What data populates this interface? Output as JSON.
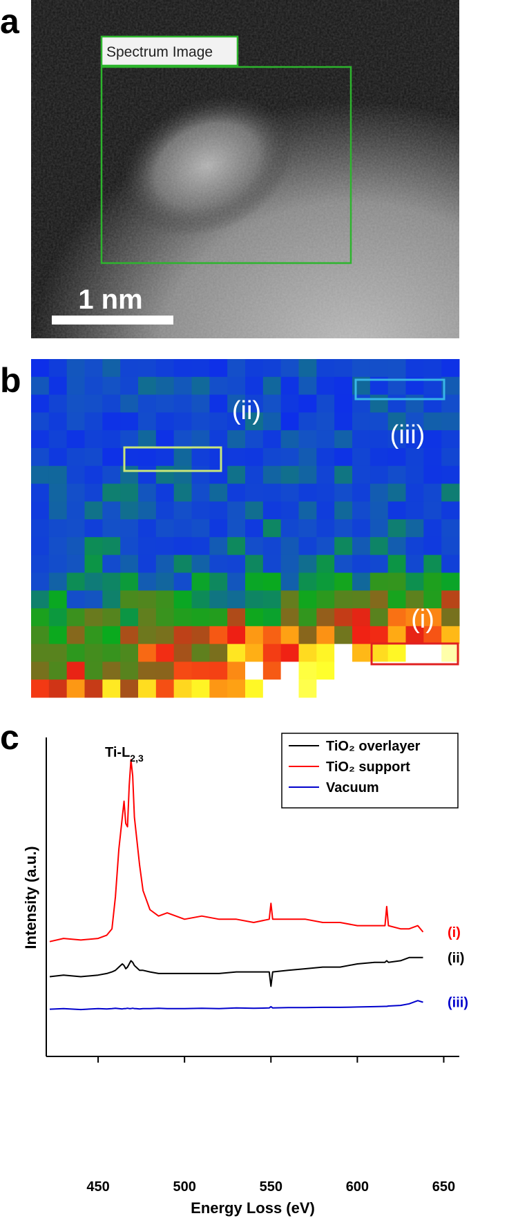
{
  "panel_a": {
    "letter": "a",
    "box_label": "Spectrum Image",
    "scale_bar": "1 nm"
  },
  "panel_b": {
    "letter": "b",
    "region_labels": [
      "(ii)",
      "(iii)",
      "(i)"
    ]
  },
  "chart_data": {
    "type": "line",
    "panel_letter": "c",
    "annotation": {
      "main": "Ti-L",
      "sub": "2,3"
    },
    "x_label": "Energy Loss (eV)",
    "y_label": "Intensity (a.u.)",
    "xlim": [
      420,
      659
    ],
    "ylim": [
      0,
      100
    ],
    "xticks": [
      450,
      500,
      550,
      600,
      650
    ],
    "x": [
      422,
      430,
      440,
      450,
      455,
      458,
      460,
      462,
      464,
      465,
      466,
      467,
      468,
      469,
      470,
      471,
      472,
      474,
      476,
      480,
      485,
      490,
      500,
      510,
      520,
      530,
      540,
      549,
      550,
      551,
      560,
      570,
      580,
      590,
      600,
      610,
      616,
      617,
      618,
      625,
      630,
      635,
      638
    ],
    "series": [
      {
        "name": "TiO₂ overlayer",
        "label": "(ii)",
        "color": "#000000",
        "values": [
          25,
          25.5,
          25,
          25.5,
          26,
          26.5,
          27,
          28,
          29,
          28.5,
          27.5,
          28,
          29,
          30,
          29.5,
          28.5,
          28,
          27,
          27,
          26.5,
          26,
          26,
          26,
          26,
          26,
          26.5,
          26.5,
          26.5,
          22,
          26.5,
          27,
          27.5,
          28,
          28,
          29,
          29.5,
          29.5,
          30,
          29.5,
          30,
          31,
          31,
          31
        ]
      },
      {
        "name": "TiO₂ support",
        "label": "(i)",
        "color": "#ff0000",
        "values": [
          36,
          37,
          36.5,
          37,
          38,
          40,
          50,
          65,
          75,
          80,
          73,
          72,
          85,
          93,
          88,
          75,
          70,
          60,
          52,
          46,
          44,
          45,
          43,
          44,
          43,
          43,
          42,
          43,
          48,
          43,
          43,
          43,
          42,
          42,
          41,
          41,
          41,
          47,
          41,
          40,
          40,
          41,
          39
        ]
      },
      {
        "name": "Vacuum",
        "label": "(iii)",
        "color": "#0000cc",
        "values": [
          14.8,
          15,
          14.7,
          15,
          14.9,
          15,
          15.1,
          15,
          14.9,
          15,
          15,
          15.1,
          15,
          15,
          15.1,
          15,
          15,
          14.9,
          15,
          15,
          15.1,
          15,
          15,
          15.1,
          15,
          15.2,
          15.1,
          15.2,
          15.6,
          15.2,
          15.3,
          15.3,
          15.4,
          15.4,
          15.5,
          15.6,
          15.7,
          15.7,
          15.8,
          16,
          16.5,
          17.5,
          17
        ]
      }
    ]
  }
}
